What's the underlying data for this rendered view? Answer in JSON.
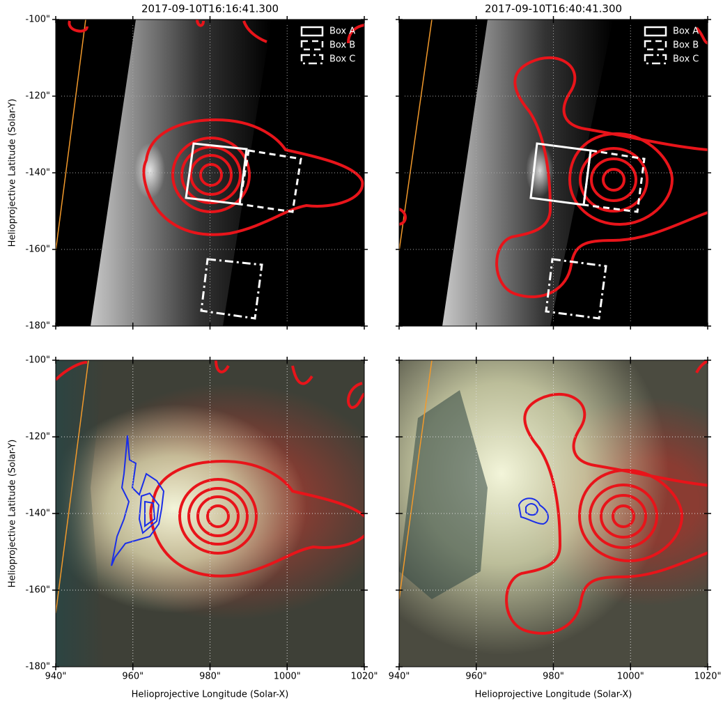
{
  "chart_data": [
    {
      "type": "image",
      "title": "2017-09-10T16:16:41.300",
      "ylabel": "Helioprojective Latitude (Solar-Y)",
      "xlim": [
        940,
        1020
      ],
      "ylim": [
        -180,
        -100
      ],
      "yticks": [
        {
          "value": -100,
          "label": "-100\""
        },
        {
          "value": -120,
          "label": "-120\""
        },
        {
          "value": -140,
          "label": "-140\""
        },
        {
          "value": -160,
          "label": "-160\""
        },
        {
          "value": -180,
          "label": "-180\""
        }
      ],
      "legend": [
        "Box A",
        "Box B",
        "Box C"
      ],
      "grid": true
    },
    {
      "type": "image",
      "title": "2017-09-10T16:40:41.300",
      "xlim": [
        940,
        1020
      ],
      "ylim": [
        -180,
        -100
      ],
      "legend": [
        "Box A",
        "Box B",
        "Box C"
      ],
      "grid": true
    },
    {
      "type": "image",
      "ylabel": "Helioprojective Latitude (Solar-Y)",
      "xlabel": "Helioprojective Longitude (Solar-X)",
      "xlim": [
        940,
        1020
      ],
      "ylim": [
        -180,
        -100
      ],
      "xticks": [
        {
          "value": 940,
          "label": "940\""
        },
        {
          "value": 960,
          "label": "960\""
        },
        {
          "value": 980,
          "label": "980\""
        },
        {
          "value": 1000,
          "label": "1000\""
        },
        {
          "value": 1020,
          "label": "1020\""
        }
      ],
      "yticks": [
        {
          "value": -100,
          "label": "-100\""
        },
        {
          "value": -120,
          "label": "-120\""
        },
        {
          "value": -140,
          "label": "-140\""
        },
        {
          "value": -160,
          "label": "-160\""
        },
        {
          "value": -180,
          "label": "-180\""
        }
      ],
      "grid": true
    },
    {
      "type": "image",
      "xlabel": "Helioprojective Longitude (Solar-X)",
      "xlim": [
        940,
        1020
      ],
      "ylim": [
        -180,
        -100
      ],
      "xticks": [
        {
          "value": 940,
          "label": "940\""
        },
        {
          "value": 960,
          "label": "960\""
        },
        {
          "value": 980,
          "label": "980\""
        },
        {
          "value": 1000,
          "label": "1000\""
        },
        {
          "value": 1020,
          "label": "1020\""
        }
      ],
      "grid": true
    }
  ]
}
